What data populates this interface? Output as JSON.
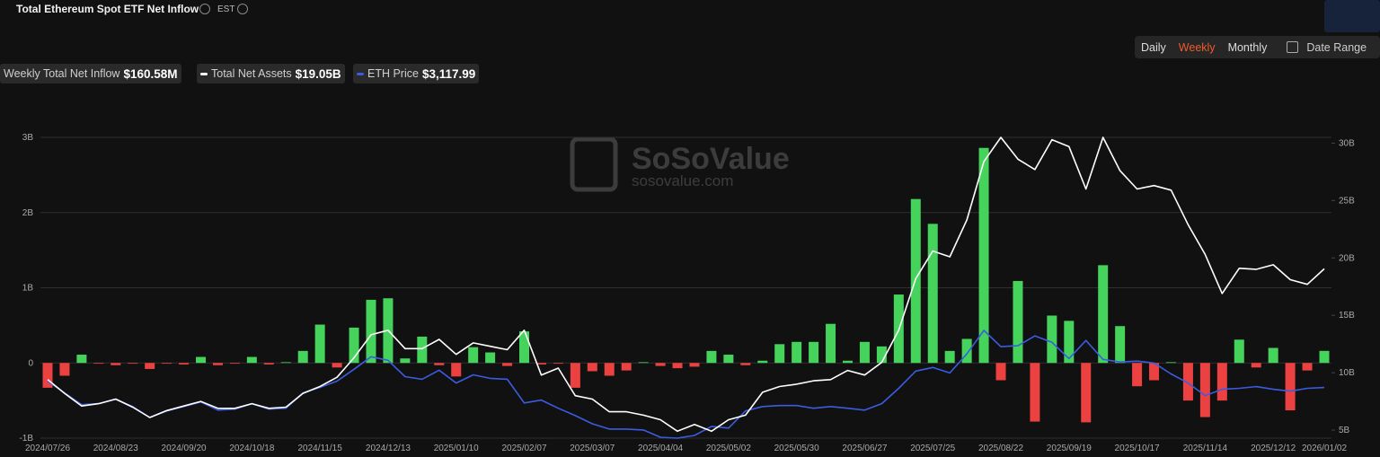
{
  "header": {
    "title": "Total Ethereum Spot ETF Net Inflow",
    "timezone": "EST"
  },
  "controls": {
    "intervals": [
      "Daily",
      "Weekly",
      "Monthly"
    ],
    "active": 1,
    "date_range": "Date Range"
  },
  "watermark": {
    "name": "SoSoValue",
    "url": "sosovalue.com"
  },
  "chart_data": {
    "type": "combo",
    "categories": [
      "2024/07/26",
      null,
      null,
      null,
      "2024/08/23",
      null,
      null,
      null,
      "2024/09/20",
      null,
      null,
      null,
      "2024/10/18",
      null,
      null,
      null,
      "2024/11/15",
      null,
      null,
      null,
      "2024/12/13",
      null,
      null,
      null,
      "2025/01/10",
      null,
      null,
      null,
      "2025/02/07",
      null,
      null,
      null,
      "2025/03/07",
      null,
      null,
      null,
      "2025/04/04",
      null,
      null,
      null,
      "2025/05/02",
      null,
      null,
      null,
      "2025/05/30",
      null,
      null,
      null,
      "2025/06/27",
      null,
      null,
      null,
      "2025/07/25",
      null,
      null,
      null,
      "2025/08/22",
      null,
      null,
      null,
      "2025/09/19",
      null,
      null,
      null,
      "2025/10/17",
      null,
      null,
      null,
      "2025/11/14",
      null,
      null,
      null,
      "2025/12/12",
      null,
      null,
      "2026/01/02"
    ],
    "series": [
      {
        "name": "Weekly Total Net Inflow",
        "type": "bar",
        "color": "#45d35c",
        "negative_color": "#ec4141",
        "last_label": "$160.58M",
        "values": [
          -0.33,
          -0.17,
          0.11,
          -0.01,
          -0.03,
          -0.01,
          -0.08,
          -0.01,
          -0.02,
          0.08,
          -0.03,
          -0.01,
          0.08,
          -0.02,
          0.01,
          0.16,
          0.51,
          -0.06,
          0.47,
          0.84,
          0.86,
          0.06,
          0.35,
          -0.03,
          -0.18,
          0.21,
          0.14,
          -0.04,
          0.42,
          -0.02,
          -0.01,
          -0.33,
          -0.11,
          -0.17,
          -0.1,
          0.01,
          -0.04,
          -0.07,
          -0.05,
          0.16,
          0.11,
          -0.03,
          0.03,
          0.25,
          0.28,
          0.28,
          0.52,
          0.03,
          0.28,
          0.22,
          0.91,
          2.18,
          1.85,
          0.16,
          0.32,
          2.86,
          -0.23,
          1.09,
          -0.78,
          0.63,
          0.56,
          -0.79,
          1.3,
          0.49,
          -0.31,
          -0.23,
          0.01,
          -0.5,
          -0.72,
          -0.5,
          0.31,
          -0.06,
          0.2,
          -0.63,
          -0.1,
          0.16058
        ]
      },
      {
        "name": "Total Net Assets",
        "type": "line",
        "axis": "y2",
        "color": "#ffffff",
        "last_label": "$19.05B",
        "values": [
          9.4,
          8.2,
          7.1,
          7.3,
          7.7,
          7.0,
          6.1,
          6.7,
          7.1,
          7.5,
          6.9,
          6.9,
          7.3,
          6.9,
          7.0,
          8.2,
          8.8,
          9.6,
          11.3,
          13.3,
          13.7,
          12.1,
          12.1,
          12.9,
          11.6,
          12.6,
          12.3,
          12.0,
          13.7,
          9.8,
          10.4,
          8.0,
          7.7,
          6.6,
          6.6,
          6.3,
          5.9,
          4.9,
          5.5,
          4.9,
          5.9,
          6.3,
          8.3,
          8.8,
          9.0,
          9.3,
          9.4,
          10.2,
          9.8,
          10.9,
          13.7,
          18.2,
          20.6,
          20.1,
          23.3,
          28.4,
          30.5,
          28.6,
          27.7,
          30.3,
          29.7,
          26.0,
          30.5,
          27.6,
          26.0,
          26.3,
          25.9,
          22.9,
          20.3,
          16.9,
          19.1,
          19.0,
          19.4,
          18.1,
          17.7,
          19.05
        ]
      },
      {
        "name": "ETH Price",
        "type": "line",
        "axis": "own",
        "color": "#3b5ce0",
        "last_label": "$3,117.99",
        "values": [
          3320,
          2945,
          2570,
          2600,
          2740,
          2510,
          2160,
          2370,
          2510,
          2655,
          2395,
          2425,
          2600,
          2425,
          2455,
          2945,
          3120,
          3320,
          3700,
          4100,
          3985,
          3465,
          3380,
          3670,
          3260,
          3520,
          3410,
          3380,
          2625,
          2715,
          2455,
          2220,
          1960,
          1790,
          1790,
          1760,
          1530,
          1500,
          1585,
          1875,
          1820,
          2370,
          2510,
          2540,
          2540,
          2455,
          2510,
          2455,
          2395,
          2600,
          3090,
          3640,
          3755,
          3580,
          4190,
          4940,
          4420,
          4450,
          4765,
          4560,
          4040,
          4620,
          4015,
          3930,
          3960,
          3900,
          3550,
          3260,
          2860,
          3060,
          3090,
          3145,
          3060,
          3000,
          3090,
          3117.99
        ]
      }
    ],
    "ylim": [
      -1,
      3
    ],
    "yticks": [
      {
        "value": 3,
        "label": "3B"
      },
      {
        "value": 2,
        "label": "2B"
      },
      {
        "value": 1,
        "label": "1B"
      },
      0,
      {
        "value": -1,
        "label": "-1B"
      }
    ],
    "y2lim": [
      4.3,
      30.5
    ],
    "y2ticks": [
      {
        "value": 30,
        "label": "30B"
      },
      {
        "value": 25,
        "label": "25B"
      },
      {
        "value": 20,
        "label": "20B"
      },
      {
        "value": 15,
        "label": "15B"
      },
      {
        "value": 10,
        "label": "10B"
      },
      {
        "value": 5,
        "label": "5B"
      }
    ],
    "grid": true
  }
}
